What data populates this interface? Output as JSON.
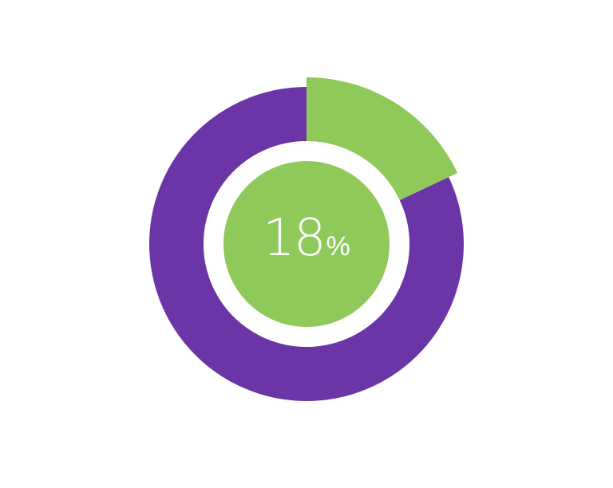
{
  "chart_data": {
    "type": "pie",
    "style": "donut",
    "title": "",
    "values": [
      18,
      82
    ],
    "colors": [
      "#8fc95a",
      "#6b35a8"
    ],
    "center_color": "#8fc95a",
    "center_label": {
      "value": "18",
      "unit": "%"
    }
  }
}
